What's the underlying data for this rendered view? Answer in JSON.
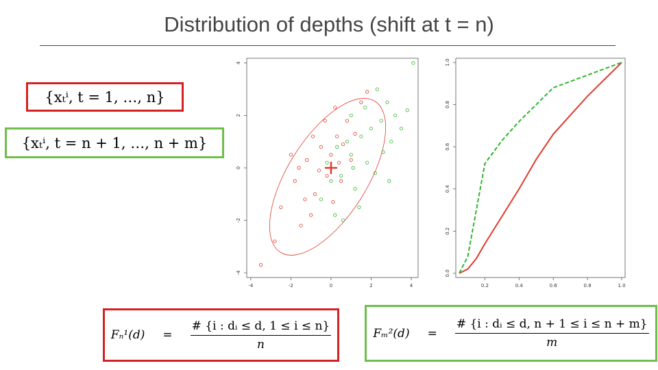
{
  "title": "Distribution of depths (shift at t = n)",
  "sets": {
    "first": "{xₜⁱ, t = 1, …, n}",
    "second": "{xₜⁱ, t = n + 1, …, n + m}"
  },
  "formulas": [
    {
      "lhs": "Fₙ¹(d)",
      "eq": "=",
      "numerator": "# {i : dᵢ ≤ d, 1 ≤ i ≤ n}",
      "denominator": "n"
    },
    {
      "lhs": "Fₘ²(d)",
      "eq": "=",
      "numerator": "# {i : dᵢ ≤ d, n + 1 ≤ i ≤ n + m}",
      "denominator": "m"
    }
  ],
  "chart_data": [
    {
      "type": "scatter",
      "xlim": [
        -4.2,
        4.34
      ],
      "ylim": [
        -4.18,
        4.18
      ],
      "xticks": [
        -4,
        -2,
        0,
        2,
        4
      ],
      "yticks": [
        -4,
        -2,
        0,
        2,
        4
      ],
      "series": [
        {
          "color": "#e0392c",
          "x": [
            -2.5,
            -1.8,
            -1.2,
            -0.8,
            -0.5,
            -0.2,
            0,
            0.3,
            0.5,
            0.8,
            1.0,
            -1.5,
            -2.0,
            -0.3,
            0.2,
            1.5,
            -3.5,
            -1.0,
            0.6,
            -0.6,
            -1.3,
            1.2,
            -2.8,
            0.1,
            -0.9,
            1.8,
            -1.6,
            0.4
          ],
          "values": [
            -1.5,
            -0.5,
            0.3,
            -1.0,
            0.8,
            -0.3,
            0.5,
            1.2,
            -0.5,
            1.8,
            0.3,
            -2.2,
            0.5,
            1.8,
            2.3,
            2.5,
            -3.7,
            -1.8,
            0.9,
            -0.1,
            -1.2,
            1.3,
            -2.8,
            -1.3,
            1.2,
            2.9,
            0.0,
            0.2
          ]
        },
        {
          "color": "#2eb52e",
          "x": [
            1.0,
            1.5,
            0.5,
            2.0,
            1.2,
            2.5,
            0.0,
            1.8,
            2.8,
            0.8,
            3.0,
            1.4,
            2.2,
            0.3,
            3.2,
            -0.5,
            2.6,
            1.0,
            4.1,
            0.6,
            3.5,
            1.7,
            2.3,
            0.2,
            1.1,
            2.9,
            3.8,
            -0.2
          ],
          "values": [
            0.5,
            1.2,
            -0.3,
            1.5,
            -0.8,
            1.8,
            -0.5,
            0.2,
            2.5,
            1.0,
            1.0,
            -1.5,
            -0.2,
            0.8,
            2.0,
            -1.2,
            0.6,
            2.0,
            4.0,
            -2.0,
            1.5,
            2.3,
            3.0,
            -1.8,
            0.0,
            -0.5,
            2.2,
            0.2
          ]
        }
      ]
    },
    {
      "type": "line",
      "xlim": [
        0.03,
        1.02
      ],
      "ylim": [
        -0.02,
        1.02
      ],
      "xticks": [
        0.2,
        0.4,
        0.6,
        0.8,
        {
          "value": 1,
          "label": "1.0"
        }
      ],
      "yticks": [
        {
          "value": 0,
          "label": "0.0"
        },
        0.2,
        0.4,
        0.6,
        0.8,
        {
          "value": 1,
          "label": "1.0"
        }
      ],
      "x": [
        0.05,
        0.1,
        0.15,
        0.2,
        0.3,
        0.4,
        0.5,
        0.6,
        0.7,
        0.8,
        0.9,
        1.0
      ],
      "series": [
        {
          "color": "#e0392c",
          "dashed": false,
          "values": [
            0,
            0.02,
            0.07,
            0.14,
            0.27,
            0.4,
            0.54,
            0.66,
            0.75,
            0.84,
            0.92,
            1.0
          ]
        },
        {
          "color": "#2eb52e",
          "dashed": true,
          "values": [
            0,
            0.08,
            0.3,
            0.52,
            0.63,
            0.72,
            0.8,
            0.88,
            0.91,
            0.94,
            0.97,
            1.0
          ]
        }
      ]
    }
  ]
}
